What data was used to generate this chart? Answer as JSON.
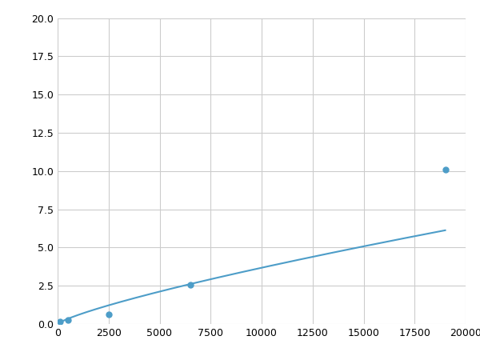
{
  "x_points": [
    100,
    500,
    2500,
    6500,
    19000
  ],
  "y_points": [
    0.15,
    0.25,
    0.65,
    2.55,
    10.1
  ],
  "line_color": "#4d9dc8",
  "marker_color": "#4d9dc8",
  "marker_size": 5,
  "line_width": 1.5,
  "xlim": [
    0,
    20000
  ],
  "ylim": [
    0,
    20.0
  ],
  "xticks": [
    0,
    2500,
    5000,
    7500,
    10000,
    12500,
    15000,
    17500,
    20000
  ],
  "yticks": [
    0.0,
    2.5,
    5.0,
    7.5,
    10.0,
    12.5,
    15.0,
    17.5,
    20.0
  ],
  "grid_color": "#cccccc",
  "background_color": "#ffffff"
}
